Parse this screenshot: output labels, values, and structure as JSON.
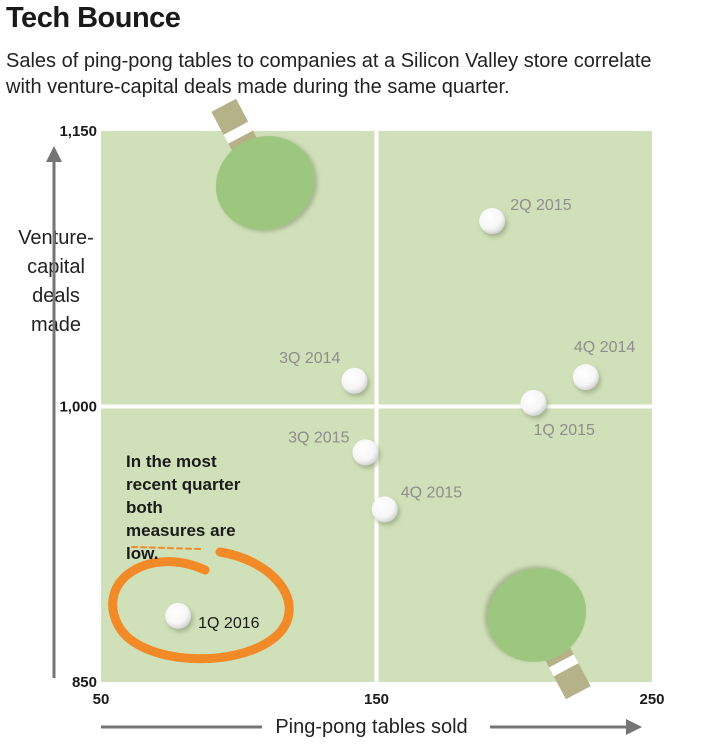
{
  "chart_data": {
    "type": "scatter",
    "title": "Tech Bounce",
    "subtitle": "Sales of ping-pong tables to companies at a Silicon Valley store correlate with venture-capital deals made during the same quarter.",
    "xlabel": "Ping-pong tables sold",
    "ylabel": "Venture-capital deals made",
    "xlim": [
      50,
      250
    ],
    "ylim": [
      850,
      1150
    ],
    "x_ticks": [
      "50",
      "150",
      "250"
    ],
    "y_ticks": [
      "850",
      "1,000",
      "1,150"
    ],
    "quadrant_split": {
      "x": 150,
      "y": 1000
    },
    "points": [
      {
        "label": "2Q 2015",
        "x": 192,
        "y": 1101
      },
      {
        "label": "4Q 2014",
        "x": 226,
        "y": 1016
      },
      {
        "label": "3Q 2014",
        "x": 142,
        "y": 1014
      },
      {
        "label": "1Q 2015",
        "x": 207,
        "y": 1002
      },
      {
        "label": "3Q 2015",
        "x": 146,
        "y": 975
      },
      {
        "label": "4Q 2015",
        "x": 153,
        "y": 944
      },
      {
        "label": "1Q 2016",
        "x": 78,
        "y": 886
      }
    ],
    "annotation": "In the most recent quarter both measures are low."
  },
  "colors": {
    "panel": "#d0e0b8",
    "divider": "#ffffff",
    "paddle": "#9dc77e",
    "handle": "#b5b28a",
    "ball": "#f6f6f6",
    "circle": "#f28a28",
    "axis": "#757575"
  }
}
